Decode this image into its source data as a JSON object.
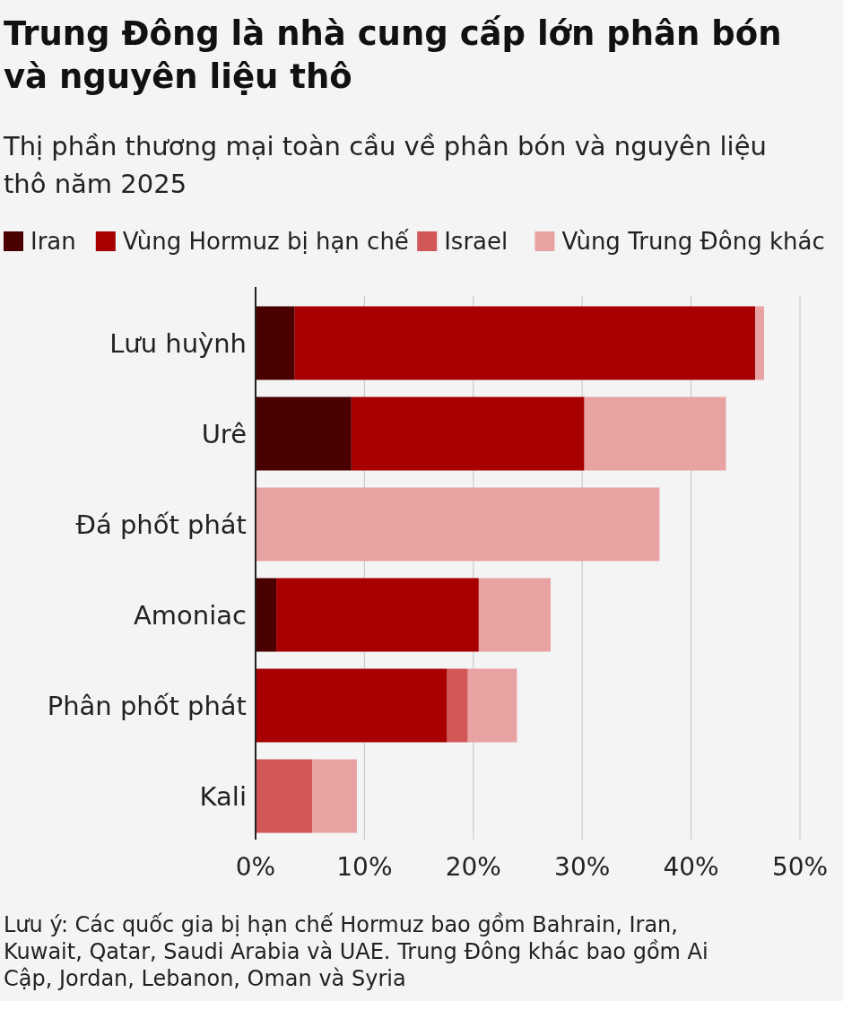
{
  "chart_data": {
    "type": "bar",
    "orientation": "horizontal",
    "stacked": true,
    "title": "Trung Đông là nhà cung cấp lớn phân bón và nguyên liệu thô",
    "subtitle": "Thị phần thương mại toàn cầu về phân bón và nguyên liệu thô năm 2025",
    "categories": [
      "Lưu huỳnh",
      "Urê",
      "Đá phốt phát",
      "Amoniac",
      "Phân phốt phát",
      "Kali"
    ],
    "series": [
      {
        "name": "Iran",
        "color": "#4a0000",
        "values": [
          3.6,
          8.8,
          null,
          1.9,
          null,
          null
        ]
      },
      {
        "name": "Vùng Hormuz bị hạn chế",
        "color": "#a80000",
        "values": [
          42.3,
          21.4,
          null,
          18.6,
          17.6,
          null
        ]
      },
      {
        "name": "Israel",
        "color": "#d25757",
        "values": [
          null,
          null,
          null,
          null,
          1.9,
          5.2
        ]
      },
      {
        "name": "Vùng Trung Đông khác",
        "color": "#e8a2a2",
        "values": [
          0.8,
          13.0,
          37.1,
          6.6,
          4.5,
          4.1
        ]
      }
    ],
    "xlim": [
      0,
      50
    ],
    "xticks": [
      {
        "value": 0,
        "label": "0%"
      },
      {
        "value": 10,
        "label": "10%"
      },
      {
        "value": 20,
        "label": "20%"
      },
      {
        "value": 30,
        "label": "30%"
      },
      {
        "value": 40,
        "label": "40%"
      },
      {
        "value": 50,
        "label": "50%"
      }
    ],
    "grid": "x",
    "legend": "top",
    "annotations": [
      "Lưu ý: Các quốc gia bị hạn chế Hormuz bao gồm Bahrain, Iran, Kuwait, Qatar, Saudi Arabia và UAE. Trung Đông khác bao gồm Ai Cập, Jordan, Lebanon, Oman và Syria"
    ]
  }
}
